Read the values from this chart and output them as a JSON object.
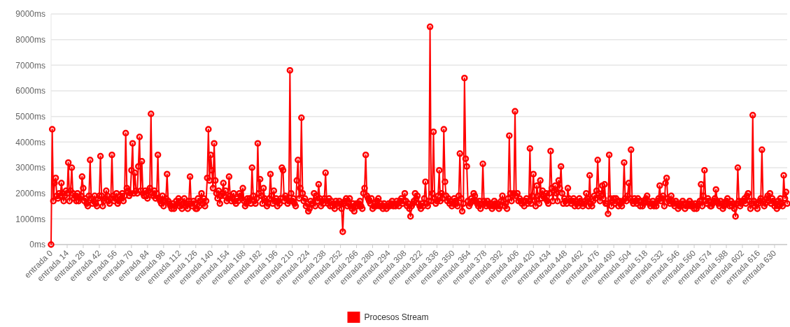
{
  "chart_data": {
    "type": "line",
    "ylim": [
      0,
      9000
    ],
    "categories": [
      "entrada 0",
      null,
      null,
      null,
      null,
      null,
      null,
      null,
      null,
      null,
      null,
      null,
      null,
      null,
      "entrada 14",
      null,
      null,
      null,
      null,
      null,
      null,
      null,
      null,
      null,
      null,
      null,
      null,
      null,
      "entrada 28",
      null,
      null,
      null,
      null,
      null,
      null,
      null,
      null,
      null,
      null,
      null,
      null,
      null,
      "entrada 42",
      null,
      null,
      null,
      null,
      null,
      null,
      null,
      null,
      null,
      null,
      null,
      null,
      null,
      "entrada 56",
      null,
      null,
      null,
      null,
      null,
      null,
      null,
      null,
      null,
      null,
      null,
      null,
      null,
      "entrada 70",
      null,
      null,
      null,
      null,
      null,
      null,
      null,
      null,
      null,
      null,
      null,
      null,
      null,
      "entrada 84",
      null,
      null,
      null,
      null,
      null,
      null,
      null,
      null,
      null,
      null,
      null,
      null,
      null,
      "entrada 98",
      null,
      null,
      null,
      null,
      null,
      null,
      null,
      null,
      null,
      null,
      null,
      null,
      null,
      "entrada 112",
      null,
      null,
      null,
      null,
      null,
      null,
      null,
      null,
      null,
      null,
      null,
      null,
      null,
      "entrada 126",
      null,
      null,
      null,
      null,
      null,
      null,
      null,
      null,
      null,
      null,
      null,
      null,
      null,
      "entrada 140",
      null,
      null,
      null,
      null,
      null,
      null,
      null,
      null,
      null,
      null,
      null,
      null,
      null,
      "entrada 154",
      null,
      null,
      null,
      null,
      null,
      null,
      null,
      null,
      null,
      null,
      null,
      null,
      null,
      "entrada 168",
      null,
      null,
      null,
      null,
      null,
      null,
      null,
      null,
      null,
      null,
      null,
      null,
      null,
      "entrada 182",
      null,
      null,
      null,
      null,
      null,
      null,
      null,
      null,
      null,
      null,
      null,
      null,
      null,
      "entrada 196",
      null,
      null,
      null,
      null,
      null,
      null,
      null,
      null,
      null,
      null,
      null,
      null,
      null,
      "entrada 210",
      null,
      null,
      null,
      null,
      null,
      null,
      null,
      null,
      null,
      null,
      null,
      null,
      null,
      "entrada 224",
      null,
      null,
      null,
      null,
      null,
      null,
      null,
      null,
      null,
      null,
      null,
      null,
      null,
      "entrada 238",
      null,
      null,
      null,
      null,
      null,
      null,
      null,
      null,
      null,
      null,
      null,
      null,
      null,
      "entrada 252",
      null,
      null,
      null,
      null,
      null,
      null,
      null,
      null,
      null,
      null,
      null,
      null,
      null,
      "entrada 266",
      null,
      null,
      null,
      null,
      null,
      null,
      null,
      null,
      null,
      null,
      null,
      null,
      null,
      "entrada 280",
      null,
      null,
      null,
      null,
      null,
      null,
      null,
      null,
      null,
      null,
      null,
      null,
      null,
      "entrada 294",
      null,
      null,
      null,
      null,
      null,
      null,
      null,
      null,
      null,
      null,
      null,
      null,
      null,
      "entrada 308",
      null,
      null,
      null,
      null,
      null,
      null,
      null,
      null,
      null,
      null,
      null,
      null,
      null,
      "entrada 322",
      null,
      null,
      null,
      null,
      null,
      null,
      null,
      null,
      null,
      null,
      null,
      null,
      null,
      "entrada 336",
      null,
      null,
      null,
      null,
      null,
      null,
      null,
      null,
      null,
      null,
      null,
      null,
      null,
      "entrada 350",
      null,
      null,
      null,
      null,
      null,
      null,
      null,
      null,
      null,
      null,
      null,
      null,
      null,
      "entrada 364",
      null,
      null,
      null,
      null,
      null,
      null,
      null,
      null,
      null,
      null,
      null,
      null,
      null,
      "entrada 378",
      null,
      null,
      null,
      null,
      null,
      null,
      null,
      null,
      null,
      null,
      null,
      null,
      null,
      "entrada 392",
      null,
      null,
      null,
      null,
      null,
      null,
      null,
      null,
      null,
      null,
      null,
      null,
      null,
      "entrada 406",
      null,
      null,
      null,
      null,
      null,
      null,
      null,
      null,
      null,
      null,
      null,
      null,
      null,
      "entrada 420",
      null,
      null,
      null,
      null,
      null,
      null,
      null,
      null,
      null,
      null,
      null,
      null,
      null,
      "entrada 434",
      null,
      null,
      null,
      null,
      null,
      null,
      null,
      null,
      null,
      null,
      null,
      null,
      null,
      "entrada 448",
      null,
      null,
      null,
      null,
      null,
      null,
      null,
      null,
      null,
      null,
      null,
      null,
      null,
      "entrada 462",
      null,
      null,
      null,
      null,
      null,
      null,
      null,
      null,
      null,
      null,
      null,
      null,
      null,
      "entrada 476",
      null,
      null,
      null,
      null,
      null,
      null,
      null,
      null,
      null,
      null,
      null,
      null,
      null,
      "entrada 490",
      null,
      null,
      null,
      null,
      null,
      null,
      null,
      null,
      null,
      null,
      null,
      null,
      null,
      "entrada 504",
      null,
      null,
      null,
      null,
      null,
      null,
      null,
      null,
      null,
      null,
      null,
      null,
      null,
      "entrada 518",
      null,
      null,
      null,
      null,
      null,
      null,
      null,
      null,
      null,
      null,
      null,
      null,
      null,
      "entrada 532",
      null,
      null,
      null,
      null,
      null,
      null,
      null,
      null,
      null,
      null,
      null,
      null,
      null,
      "entrada 546",
      null,
      null,
      null,
      null,
      null,
      null,
      null,
      null,
      null,
      null,
      null,
      null,
      null,
      "entrada 560",
      null,
      null,
      null,
      null,
      null,
      null,
      null,
      null,
      null,
      null,
      null,
      null,
      null,
      "entrada 574",
      null,
      null,
      null,
      null,
      null,
      null,
      null,
      null,
      null,
      null,
      null,
      null,
      null,
      "entrada 588",
      null,
      null,
      null,
      null,
      null,
      null,
      null,
      null,
      null,
      null,
      null,
      null,
      null,
      "entrada 602",
      null,
      null,
      null,
      null,
      null,
      null,
      null,
      null,
      null,
      null,
      null,
      null,
      null,
      "entrada 616",
      null,
      null,
      null,
      null,
      null,
      null,
      null,
      null,
      null,
      null,
      null,
      null,
      null,
      "entrada 630",
      null,
      null,
      null,
      null,
      null,
      null,
      null,
      null,
      null,
      null,
      null
    ],
    "yticks": [
      {
        "value": 0,
        "label": "0ms"
      },
      {
        "value": 1000,
        "label": "1000ms"
      },
      {
        "value": 2000,
        "label": "2000ms"
      },
      {
        "value": 3000,
        "label": "3000ms"
      },
      {
        "value": 4000,
        "label": "4000ms"
      },
      {
        "value": 5000,
        "label": "5000ms"
      },
      {
        "value": 6000,
        "label": "6000ms"
      },
      {
        "value": 7000,
        "label": "7000ms"
      },
      {
        "value": 8000,
        "label": "8000ms"
      },
      {
        "value": 9000,
        "label": "9000ms"
      }
    ],
    "grid": "y",
    "legend": "bottom",
    "marker": "circle",
    "line_style": "solid",
    "series": [
      {
        "name": "Procesos Stream",
        "color": "#ff0000",
        "values": [
          0,
          4500,
          1700,
          2400,
          2600,
          1900,
          1800,
          2000,
          1900,
          2400,
          2000,
          1700,
          1900,
          2100,
          2000,
          3200,
          1700,
          2100,
          3000,
          2000,
          1800,
          1900,
          1700,
          2000,
          1700,
          1800,
          1900,
          2650,
          2200,
          1700,
          1800,
          1600,
          1500,
          1900,
          3300,
          1800,
          1600,
          1700,
          1900,
          1600,
          1500,
          1800,
          1900,
          3450,
          1900,
          1500,
          1700,
          1800,
          2100,
          1900,
          1700,
          1600,
          1800,
          3500,
          1900,
          1700,
          1800,
          2000,
          1600,
          1700,
          1900,
          1800,
          2000,
          1700,
          1900,
          4350,
          2200,
          2100,
          1900,
          2000,
          2900,
          3950,
          2000,
          2800,
          2100,
          2000,
          3050,
          4200,
          2100,
          3250,
          2000,
          1900,
          2100,
          1900,
          1800,
          2100,
          2200,
          5100,
          2000,
          1900,
          2100,
          1800,
          2000,
          3500,
          1800,
          1700,
          1600,
          1900,
          1500,
          1700,
          1800,
          2750,
          1700,
          1600,
          1500,
          1400,
          1600,
          1400,
          1500,
          1700,
          1600,
          1800,
          1500,
          1700,
          1400,
          1600,
          1800,
          1500,
          1600,
          1400,
          1700,
          2650,
          1600,
          1500,
          1700,
          1600,
          1400,
          1400,
          1800,
          1500,
          1700,
          2000,
          1600,
          1800,
          1500,
          1700,
          2600,
          4500,
          2500,
          3500,
          2900,
          2200,
          3950,
          2500,
          2000,
          1800,
          2100,
          1600,
          1900,
          2000,
          2400,
          1900,
          2100,
          1700,
          1800,
          2650,
          1900,
          1700,
          1800,
          2000,
          1700,
          1600,
          1800,
          1700,
          2000,
          1900,
          1800,
          2200,
          1700,
          1500,
          1600,
          1800,
          1700,
          1800,
          1600,
          3000,
          1900,
          1700,
          1600,
          1800,
          3950,
          2000,
          2550,
          1900,
          1600,
          2200,
          1800,
          1700,
          1500,
          1600,
          1800,
          2750,
          1900,
          1600,
          2100,
          1700,
          1800,
          1500,
          1700,
          1600,
          1800,
          3000,
          2900,
          1700,
          1900,
          1800,
          1600,
          1700,
          6800,
          2000,
          1700,
          1800,
          1600,
          1500,
          2500,
          3300,
          1800,
          2200,
          4950,
          2000,
          1700,
          1800,
          1500,
          1600,
          1300,
          1400,
          1700,
          1600,
          1600,
          2000,
          1500,
          1900,
          1700,
          2350,
          1800,
          1500,
          1700,
          1600,
          1800,
          2800,
          1700,
          1600,
          1800,
          1500,
          1700,
          1500,
          1600,
          1400,
          1700,
          1600,
          1500,
          1700,
          1600,
          1400,
          500,
          1600,
          1700,
          1800,
          1500,
          1600,
          1800,
          1500,
          1400,
          1600,
          1300,
          1500,
          1600,
          1500,
          1600,
          1700,
          1500,
          1400,
          2000,
          2200,
          3500,
          1900,
          1800,
          1700,
          1600,
          1800,
          1400,
          1500,
          1600,
          1500,
          1700,
          1800,
          1500,
          1600,
          1500,
          1400,
          1600,
          1500,
          1400,
          1500,
          1600,
          1500,
          1600,
          1700,
          1500,
          1600,
          1500,
          1700,
          1600,
          1500,
          1700,
          1800,
          1600,
          1700,
          2000,
          1700,
          1500,
          1600,
          1400,
          1100,
          1500,
          1600,
          1700,
          2000,
          1800,
          1900,
          1600,
          1500,
          1400,
          1600,
          1500,
          1800,
          2450,
          1600,
          1500,
          1700,
          8500,
          1700,
          2000,
          4400,
          1800,
          1600,
          1700,
          1900,
          2900,
          1700,
          2000,
          1800,
          4500,
          2450,
          1900,
          1700,
          1800,
          1600,
          1700,
          1500,
          1600,
          1800,
          1700,
          1600,
          1500,
          1900,
          3550,
          1800,
          1300,
          1600,
          6500,
          3350,
          3050,
          1700,
          1500,
          1600,
          1800,
          1700,
          2000,
          1900,
          1700,
          1600,
          1500,
          1700,
          1400,
          1600,
          3150,
          1700,
          1600,
          1500,
          1700,
          1600,
          1500,
          1600,
          1400,
          1500,
          1700,
          1600,
          1500,
          1600,
          1400,
          1500,
          1700,
          1900,
          1700,
          1500,
          1600,
          1400,
          1800,
          4250,
          2000,
          1700,
          1900,
          2000,
          5200,
          1900,
          2000,
          1700,
          1800,
          1700,
          1600,
          1700,
          1500,
          1700,
          1800,
          1600,
          1700,
          3750,
          1600,
          1900,
          2750,
          1700,
          1500,
          2300,
          1900,
          1600,
          2500,
          1800,
          2100,
          1900,
          1800,
          2000,
          1700,
          1600,
          2000,
          3650,
          2200,
          1700,
          2100,
          2300,
          2000,
          1700,
          2500,
          2200,
          3050,
          2000,
          1600,
          1800,
          1700,
          1600,
          2200,
          1800,
          1700,
          1600,
          1700,
          1800,
          1500,
          1700,
          1600,
          1500,
          1800,
          1700,
          1600,
          1500,
          1600,
          1700,
          2000,
          1800,
          1500,
          2700,
          1600,
          1500,
          1700,
          1900,
          1800,
          2100,
          3300,
          2000,
          1700,
          1900,
          2300,
          1800,
          2350,
          1600,
          1600,
          1200,
          3500,
          1800,
          1500,
          1700,
          1800,
          1600,
          1800,
          1700,
          1500,
          1700,
          1600,
          1500,
          1700,
          3200,
          1800,
          1700,
          1900,
          2400,
          1800,
          3700,
          1700,
          1600,
          1800,
          1700,
          1600,
          1800,
          1700,
          1500,
          1700,
          1500,
          1600,
          1700,
          1800,
          1900,
          1700,
          1600,
          1500,
          1600,
          1700,
          1500,
          1600,
          1500,
          1700,
          1800,
          2300,
          1700,
          1800,
          1900,
          1500,
          2400,
          2600,
          1800,
          1700,
          1600,
          1900,
          1700,
          1600,
          1500,
          1700,
          1600,
          1400,
          1500,
          1600,
          1500,
          1700,
          1600,
          1400,
          1600,
          1500,
          1600,
          1700,
          1500,
          1600,
          1500,
          1400,
          1600,
          1400,
          1500,
          1600,
          1700,
          2350,
          1500,
          1900,
          2900,
          1700,
          1600,
          1800,
          1700,
          1500,
          1500,
          1600,
          1700,
          1800,
          2150,
          1700,
          1600,
          1500,
          1700,
          1600,
          1400,
          1500,
          1600,
          1700,
          1800,
          1600,
          1500,
          1700,
          1500,
          1600,
          1400,
          1100,
          1600,
          3000,
          1700,
          1500,
          1600,
          1700,
          1700,
          1800,
          1600,
          1900,
          2000,
          1700,
          1400,
          1600,
          5050,
          1700,
          1500,
          1600,
          1400,
          1600,
          1700,
          1800,
          3700,
          1700,
          1500,
          1600,
          1800,
          1900,
          1700,
          2000,
          1600,
          1800,
          1700,
          1500,
          1600,
          1400,
          1700,
          1500,
          1800,
          1600,
          1500,
          2700,
          1800,
          2050,
          1600
        ]
      }
    ]
  }
}
